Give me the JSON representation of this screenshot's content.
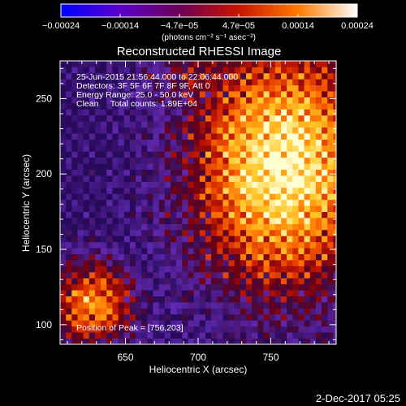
{
  "colorbar": {
    "ticks": [
      "−0.00024",
      "−0.00014",
      "−4.7e−05",
      "4.7e−05",
      "0.00014",
      "0.00024"
    ],
    "tick_values": [
      -0.00024,
      -0.00014,
      -4.7e-05,
      4.7e-05,
      0.00014,
      0.00024
    ],
    "units_label": "(photons cm⁻² s⁻¹ asec⁻²)",
    "colors": [
      "#0000ff",
      "#5b00c8",
      "#6b0056",
      "#c81400",
      "#ff7a00",
      "#ffffff"
    ]
  },
  "chart_data": {
    "type": "heatmap",
    "title": "Reconstructed RHESSI Image",
    "xlabel": "Heliocentric X (arcsec)",
    "ylabel": "Heliocentric Y (arcsec)",
    "xlim": [
      605,
      795
    ],
    "ylim": [
      87,
      275
    ],
    "x_ticks": [
      "650",
      "700",
      "750"
    ],
    "x_tick_values": [
      650,
      700,
      750
    ],
    "y_ticks": [
      "100",
      "150",
      "200",
      "250"
    ],
    "y_tick_values": [
      100,
      150,
      200,
      250
    ],
    "peak_x": 756,
    "peak_y": 203,
    "pixel_step_arcsec": 4,
    "annotations": [
      "25-Jun-2015 21:56:44.000 to 22:06:44.000",
      "Detectors: 3F 5F 6F 7F 8F 9F, Att 0",
      "Energy Range: 25.0 - 50.0 keV",
      "Clean     Total counts: 1.89E+04"
    ],
    "peak_label": "Position of Peak = [756,203]"
  },
  "footer": {
    "date": "2-Dec-2017 05:25"
  }
}
